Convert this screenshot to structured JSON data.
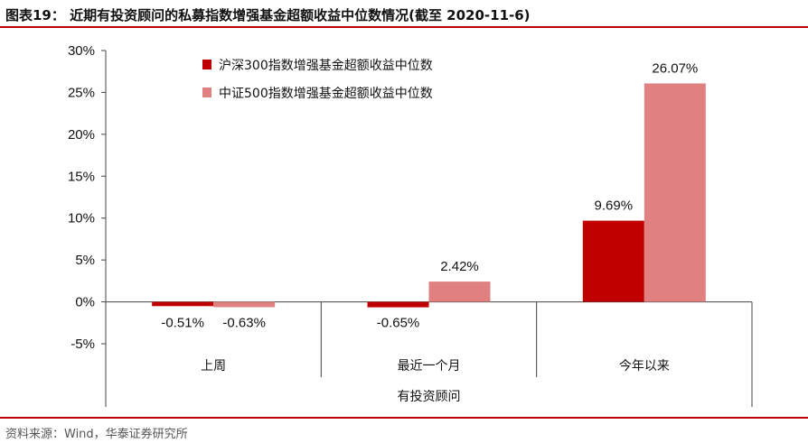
{
  "figure": {
    "title": "图表19：  近期有投资顾问的私募指数增强基金超额收益中位数情况(截至 2020-11-6)",
    "source": "资料来源：Wind，华泰证券研究所"
  },
  "colors": {
    "series_1": "#c00000",
    "series_2": "#e08080",
    "accent_rule": "#c00000"
  },
  "chart_data": {
    "type": "bar",
    "categories": [
      "上周",
      "最近一个月",
      "今年以来"
    ],
    "group_label": "有投资顾问",
    "series": [
      {
        "name": "沪深300指数增强基金超额收益中位数",
        "values": [
          -0.51,
          -0.65,
          9.69
        ],
        "labels": [
          "-0.51%",
          "-0.65%",
          "9.69%"
        ]
      },
      {
        "name": "中证500指数增强基金超额收益中位数",
        "values": [
          -0.63,
          2.42,
          26.07
        ],
        "labels": [
          "-0.63%",
          "2.42%",
          "26.07%"
        ]
      }
    ],
    "ylim": [
      -5,
      30
    ],
    "yticks": [
      30,
      25,
      20,
      15,
      10,
      5,
      0,
      -5
    ],
    "ytick_labels": [
      "30%",
      "25%",
      "20%",
      "15%",
      "10%",
      "5%",
      "0%",
      "-5%"
    ],
    "legend_position": "top-left",
    "grid": false,
    "xlabel": "",
    "ylabel": ""
  }
}
